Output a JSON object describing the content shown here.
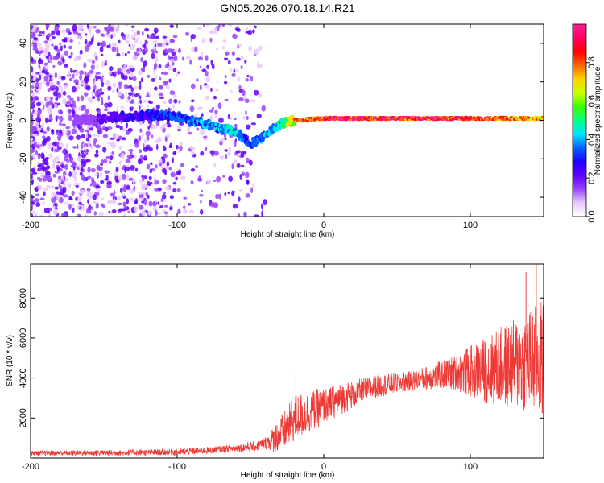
{
  "title": "GN05.2026.070.18.14.R21",
  "chart_data": [
    {
      "type": "heatmap",
      "xlabel": "Height of straight line (km)",
      "ylabel": "Frequency (Hz)",
      "xlim": [
        -200,
        150
      ],
      "ylim": [
        -50,
        50
      ],
      "xticks": [
        -200,
        -100,
        0,
        100
      ],
      "yticks": [
        -40,
        -20,
        0,
        20,
        40
      ],
      "colorbar": {
        "label": "Normalized spectral amplitude",
        "range": [
          0,
          1
        ],
        "ticks": [
          "0.0",
          "0.2",
          "0.4",
          "0.6",
          "0.8"
        ],
        "colors": [
          "#ffffff",
          "#e9c8ff",
          "#9a44ff",
          "#6200ff",
          "#1e00ff",
          "#0064ff",
          "#00e6ff",
          "#00ff80",
          "#3cff00",
          "#c8ff00",
          "#ffd200",
          "#ff6400",
          "#ff0000",
          "#ff0064",
          "#ff1e96"
        ]
      },
      "ridge": {
        "description_points_x_km": [
          -160,
          -140,
          -120,
          -100,
          -80,
          -60,
          -50,
          -40,
          -30,
          -20,
          0,
          20,
          50,
          80,
          100,
          120,
          150
        ],
        "frequency_hz": [
          0,
          2,
          3,
          2,
          -2,
          -6,
          -12,
          -8,
          -2,
          0,
          1,
          1,
          1,
          1,
          1,
          1,
          1
        ],
        "amplitude": [
          0.15,
          0.25,
          0.3,
          0.35,
          0.4,
          0.45,
          0.35,
          0.4,
          0.45,
          0.8,
          0.95,
          0.95,
          0.95,
          0.95,
          0.9,
          0.85,
          0.8
        ]
      }
    },
    {
      "type": "line",
      "xlabel": "Height of straight line (km)",
      "ylabel": "SNR (10 * v/v)",
      "xlim": [
        -200,
        150
      ],
      "ylim": [
        0,
        9700
      ],
      "xticks": [
        -200,
        -100,
        0,
        100
      ],
      "yticks": [
        2000,
        4000,
        6000,
        8000
      ],
      "series": [
        {
          "name": "SNR",
          "color": "#ee3a36",
          "trend": {
            "x": [
              -200,
              -150,
              -100,
              -80,
              -60,
              -45,
              -35,
              -25,
              -20,
              -10,
              0,
              10,
              20,
              30,
              40,
              50,
              60,
              70,
              80,
              90,
              100,
              110,
              120,
              130,
              140,
              150
            ],
            "y": [
              250,
              260,
              300,
              380,
              500,
              600,
              900,
              1500,
              2000,
              2300,
              2600,
              2900,
              3200,
              3450,
              3650,
              3750,
              3850,
              4000,
              4150,
              4250,
              4350,
              4400,
              4550,
              4700,
              4850,
              5000
            ]
          },
          "noise_amplitude": {
            "x": [
              -200,
              -60,
              -40,
              -30,
              -20,
              0,
              30,
              60,
              80,
              90,
              100,
              120,
              140,
              150
            ],
            "y": [
              120,
              180,
              300,
              900,
              1200,
              900,
              600,
              500,
              700,
              900,
              1300,
              2000,
              2600,
              3000
            ]
          },
          "peaks": [
            {
              "x": -19,
              "y": 4300
            },
            {
              "x": 138,
              "y": 9300
            },
            {
              "x": 145,
              "y": 9700
            }
          ]
        }
      ]
    }
  ]
}
